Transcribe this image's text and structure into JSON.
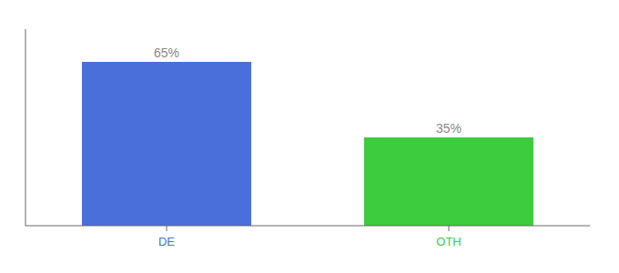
{
  "chart_data": {
    "type": "bar",
    "categories": [
      "DE",
      "OTH"
    ],
    "values": [
      65,
      35
    ],
    "value_labels": [
      "65%",
      "35%"
    ],
    "colors": [
      "#4a6fdb",
      "#3dcc3d"
    ],
    "ylim": [
      0,
      78
    ],
    "data_labels": true,
    "tick_labels": "x"
  }
}
